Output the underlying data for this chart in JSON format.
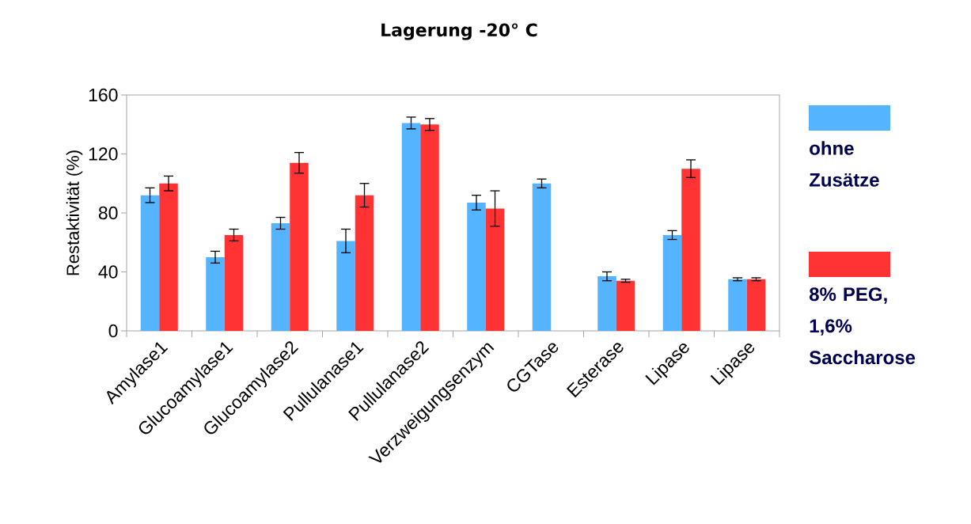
{
  "chart_data": {
    "type": "bar",
    "title": "Lagerung -20° C",
    "ylabel": "Restaktivität (%)",
    "categories": [
      "Amylase1",
      "Glucoamylase1",
      "Glucoamylase2",
      "Pullulanase1",
      "Pullulanase2",
      "Verzweigungsenzym",
      "CGTase",
      "Esterase",
      "Lipase",
      "Lipase"
    ],
    "series": [
      {
        "name": "ohne Zusätze",
        "color": "#55b4ff",
        "values": [
          92,
          50,
          73,
          61,
          141,
          87,
          100,
          37,
          65,
          35
        ],
        "errors": [
          5,
          4,
          4,
          8,
          4,
          5,
          3,
          3,
          3,
          1
        ]
      },
      {
        "name": "8% PEG, 1,6% Saccharose",
        "color": "#ff3333",
        "values": [
          100,
          65,
          114,
          92,
          140,
          83,
          null,
          34,
          110,
          35
        ],
        "errors": [
          5,
          4,
          7,
          8,
          4,
          12,
          null,
          1,
          6,
          1
        ]
      }
    ],
    "ylim": [
      0,
      160
    ],
    "yticks": [
      0,
      40,
      80,
      120,
      160
    ],
    "grid": false,
    "legend": "right"
  }
}
